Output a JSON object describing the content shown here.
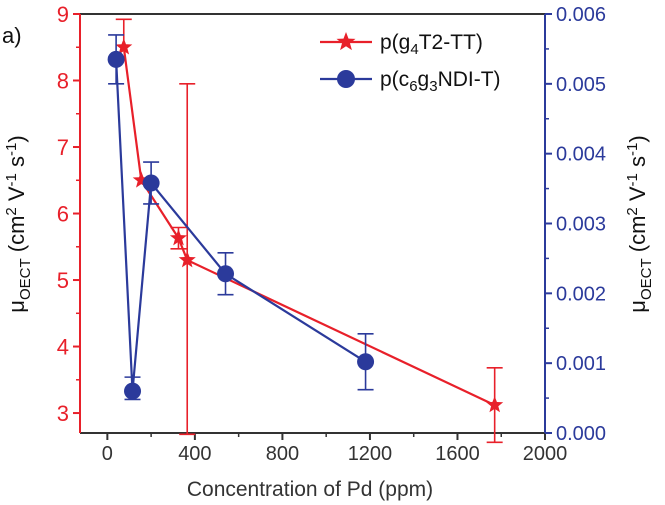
{
  "chart_data": {
    "type": "line",
    "panel_label": "a)",
    "xlabel": "Concentration of Pd (ppm)",
    "ylabel_left": {
      "main": "μ",
      "sub": "OECT",
      "unit": "(cm",
      "sup1": "2",
      "mid": "V",
      "sup2": "-1",
      "s": "s",
      "sup3": "-1",
      "close": ")"
    },
    "ylabel_right": {
      "main": "μ",
      "sub": "OECT",
      "unit": "(cm",
      "sup1": "2",
      "mid": "V",
      "sup2": "-1",
      "s": "s",
      "sup3": "-1",
      "close": ")"
    },
    "xlim": [
      -125,
      2000
    ],
    "ylim_left": [
      2.7,
      9
    ],
    "ylim_right": [
      0,
      0.006
    ],
    "x_ticks": [
      "0",
      "400",
      "800",
      "1200",
      "1600",
      "2000"
    ],
    "x_tick_values": [
      0,
      400,
      800,
      1200,
      1600,
      2000
    ],
    "y_ticks_left": [
      "3",
      "4",
      "5",
      "6",
      "7",
      "8",
      "9"
    ],
    "y_tick_values_left": [
      3,
      4,
      5,
      6,
      7,
      8,
      9
    ],
    "y_ticks_right": [
      "0.000",
      "0.001",
      "0.002",
      "0.003",
      "0.004",
      "0.005",
      "0.006"
    ],
    "y_tick_values_right": [
      0,
      0.001,
      0.002,
      0.003,
      0.004,
      0.005,
      0.006
    ],
    "legend_position": "top-right",
    "series": [
      {
        "legend": {
          "pre": "p(g",
          "sub": "4",
          "post": "T2-TT)"
        },
        "axis": "left",
        "color": "#e8202a",
        "marker": "star",
        "x": [
          75,
          155,
          325,
          365,
          1770
        ],
        "y": [
          8.5,
          6.5,
          5.63,
          5.3,
          3.12
        ],
        "err_low": [
          0,
          0,
          0.16,
          2.62,
          0.56
        ],
        "err_high": [
          0.42,
          0,
          0.16,
          2.65,
          0.56
        ]
      },
      {
        "legend": {
          "pre": "p(c",
          "sub": "6",
          "mid": "g",
          "sub2": "3",
          "post": "NDI-T)"
        },
        "axis": "right",
        "color": "#2b3a9b",
        "marker": "circle",
        "x": [
          40,
          115,
          200,
          540,
          1180
        ],
        "y": [
          0.00535,
          0.0006,
          0.00358,
          0.00228,
          0.00102
        ],
        "err_low": [
          0.00035,
          0.00012,
          0.0003,
          0.0003,
          0.0004
        ],
        "err_high": [
          0.00035,
          0.0002,
          0.0003,
          0.0003,
          0.0004
        ]
      }
    ]
  }
}
